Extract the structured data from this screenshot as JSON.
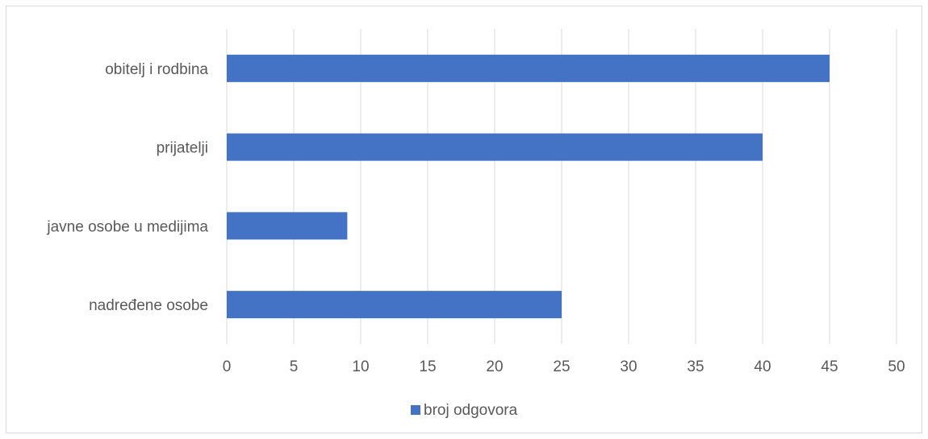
{
  "chart_data": {
    "type": "bar",
    "orientation": "horizontal",
    "categories": [
      "obitelj i rodbina",
      "prijatelji",
      "javne osobe u medijima",
      "nadređene osobe"
    ],
    "series": [
      {
        "name": "broj odgovora",
        "values": [
          45,
          40,
          9,
          25
        ],
        "color": "#4472c4"
      }
    ],
    "xlim": [
      0,
      50
    ],
    "x_ticks": [
      0,
      5,
      10,
      15,
      20,
      25,
      30,
      35,
      40,
      45,
      50
    ],
    "grid": true,
    "legend_position": "bottom"
  }
}
